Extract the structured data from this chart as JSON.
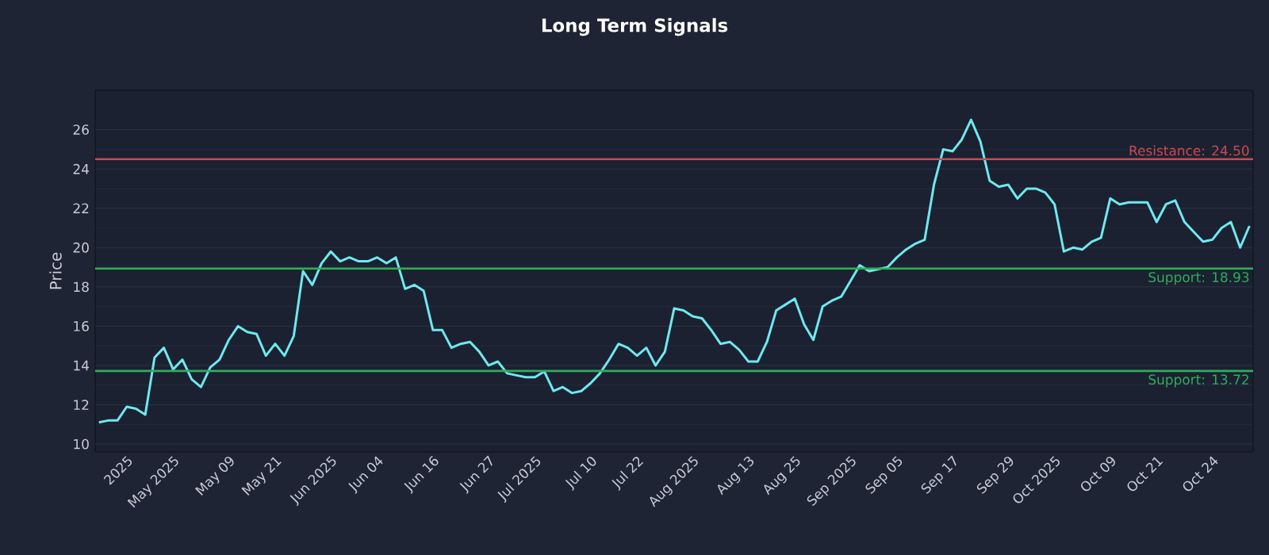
{
  "chart_data": {
    "type": "line",
    "title": "Long Term Signals",
    "ylabel": "Price",
    "categories": [
      null,
      null,
      null,
      "2025",
      null,
      null,
      null,
      null,
      "May 2025",
      null,
      null,
      null,
      null,
      null,
      "May 09",
      null,
      null,
      null,
      null,
      "May 21",
      null,
      null,
      null,
      null,
      null,
      "Jun 2025",
      null,
      null,
      null,
      null,
      "Jun 04",
      null,
      null,
      null,
      null,
      null,
      "Jun 16",
      null,
      null,
      null,
      null,
      null,
      "Jun 27",
      null,
      null,
      null,
      null,
      "Jul 2025",
      null,
      null,
      null,
      null,
      null,
      "Jul 10",
      null,
      null,
      null,
      null,
      "Jul 22",
      null,
      null,
      null,
      null,
      null,
      "Aug 2025",
      null,
      null,
      null,
      null,
      null,
      "Aug 13",
      null,
      null,
      null,
      null,
      "Aug 25",
      null,
      null,
      null,
      null,
      null,
      "Sep 2025",
      null,
      null,
      null,
      null,
      "Sep 05",
      null,
      null,
      null,
      null,
      null,
      "Sep 17",
      null,
      null,
      null,
      null,
      null,
      "Sep 29",
      null,
      null,
      null,
      null,
      "Oct 2025",
      null,
      null,
      null,
      null,
      null,
      "Oct 09",
      null,
      null,
      null,
      null,
      "Oct 21",
      null,
      null,
      null,
      null,
      null,
      "Oct 24",
      null,
      null,
      null,
      null
    ],
    "series": [
      {
        "color": "#6fe8f0",
        "values": [
          11.1,
          11.2,
          11.2,
          11.9,
          11.8,
          11.5,
          14.4,
          14.9,
          13.8,
          14.3,
          13.3,
          12.9,
          13.9,
          14.3,
          15.3,
          16.0,
          15.7,
          15.6,
          14.5,
          15.1,
          14.5,
          15.5,
          18.8,
          18.1,
          19.2,
          19.8,
          19.3,
          19.5,
          19.3,
          19.3,
          19.5,
          19.2,
          19.5,
          17.9,
          18.1,
          17.8,
          15.8,
          15.8,
          14.9,
          15.1,
          15.2,
          14.7,
          14.0,
          14.2,
          13.6,
          13.5,
          13.4,
          13.4,
          13.7,
          12.7,
          12.9,
          12.6,
          12.7,
          13.1,
          13.6,
          14.3,
          15.1,
          14.9,
          14.5,
          14.9,
          14.0,
          14.7,
          16.9,
          16.8,
          16.5,
          16.4,
          15.8,
          15.1,
          15.2,
          14.8,
          14.2,
          14.2,
          15.2,
          16.8,
          17.1,
          17.4,
          16.1,
          15.3,
          17.0,
          17.3,
          17.5,
          18.3,
          19.1,
          18.8,
          18.9,
          19.0,
          19.5,
          19.9,
          20.2,
          20.4,
          23.2,
          25.0,
          24.9,
          25.5,
          26.5,
          25.4,
          23.4,
          23.1,
          23.2,
          22.5,
          23.0,
          23.0,
          22.8,
          22.2,
          19.8,
          20.0,
          19.9,
          20.3,
          20.5,
          22.5,
          22.2,
          22.3,
          22.3,
          22.3,
          21.3,
          22.2,
          22.4,
          21.3,
          20.8,
          20.3,
          20.4,
          21.0,
          21.3,
          20.0,
          21.1
        ]
      }
    ],
    "ylim": [
      9.6,
      28
    ],
    "yticks": [
      10,
      12,
      14,
      16,
      18,
      20,
      22,
      24,
      26
    ],
    "grid": "y",
    "ref_lines": [
      {
        "axis": "y",
        "value": 24.5,
        "label": "Resistance: 24.50",
        "color": "#c94a50"
      },
      {
        "axis": "y",
        "value": 18.93,
        "label": "Support: 18.93",
        "color": "#2fae5c"
      },
      {
        "axis": "y",
        "value": 13.72,
        "label": "Support: 13.72",
        "color": "#2fae5c"
      }
    ]
  }
}
